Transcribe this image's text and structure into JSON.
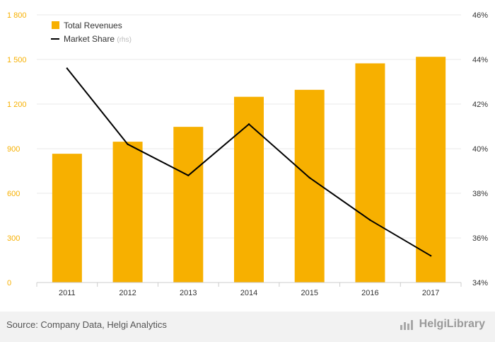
{
  "chart_data": {
    "type": "bar",
    "categories": [
      "2011",
      "2012",
      "2013",
      "2014",
      "2015",
      "2016",
      "2017"
    ],
    "series": [
      {
        "name": "Total Revenues",
        "type": "bar",
        "axis": "left",
        "color": "#f7b000",
        "values": [
          866,
          947,
          1047,
          1249,
          1296,
          1474,
          1518
        ]
      },
      {
        "name": "Market Share",
        "legend_suffix": "(rhs)",
        "type": "line",
        "axis": "right",
        "color": "#000000",
        "values": [
          43.6,
          40.2,
          38.8,
          41.1,
          38.7,
          36.8,
          35.2
        ]
      }
    ],
    "y_left": {
      "ylim": [
        0,
        1800
      ],
      "ticks": [
        0,
        300,
        600,
        900,
        1200,
        1500,
        1800
      ],
      "tick_labels": [
        "0",
        "300",
        "600",
        "900",
        "1 200",
        "1 500",
        "1 800"
      ],
      "color": "#f7b000"
    },
    "y_right": {
      "ylim": [
        34,
        46
      ],
      "ticks": [
        34,
        36,
        38,
        40,
        42,
        44,
        46
      ],
      "tick_labels": [
        "34%",
        "36%",
        "38%",
        "40%",
        "42%",
        "44%",
        "46%"
      ]
    },
    "grid": true,
    "legend_position": "top-left"
  },
  "footer": {
    "source": "Source: Company Data, Helgi Analytics",
    "brand": "HelgiLibrary",
    "brand_icon": "helgi-library-icon"
  }
}
